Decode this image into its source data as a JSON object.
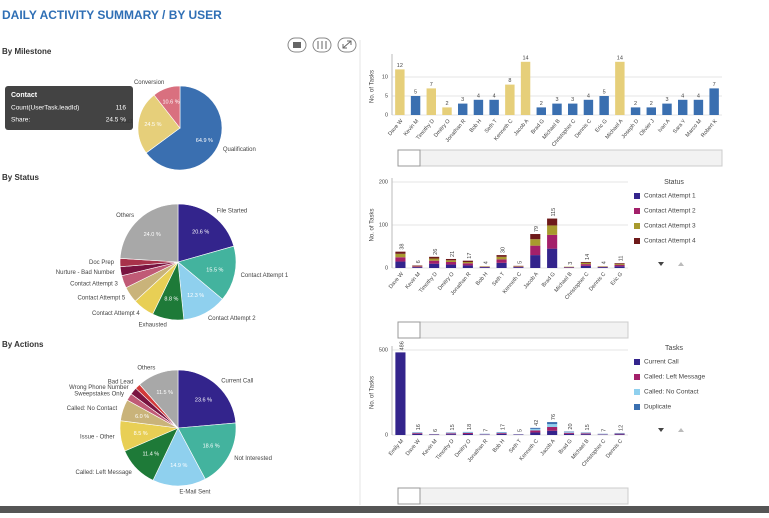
{
  "header": {
    "title": "DAILY ACTIVITY SUMMARY / BY USER"
  },
  "chart_data": [
    {
      "type": "pie",
      "title": "By Milestone",
      "categories": [
        "Qualification",
        "Contact",
        "Conversion"
      ],
      "values": [
        64.9,
        24.5,
        10.6
      ],
      "value_labels": [
        "64.9 %",
        "24.5 %",
        "10.6 %"
      ],
      "colors": [
        "#3a6fb0",
        "#e6cf7a",
        "#d9707f"
      ],
      "tooltip": {
        "title": "Contact",
        "rows": [
          [
            "Count(UserTask.leadId)",
            "116"
          ],
          [
            "Share:",
            "24.5 %"
          ]
        ]
      }
    },
    {
      "type": "pie",
      "title": "By Status",
      "categories": [
        "File Started",
        "Contact Attempt 1",
        "Contact Attempt 2",
        "Exhausted",
        "Contact Attempt 4",
        "Contact Attempt 5",
        "Contact Attempt 3",
        "Nurture - Bad Number",
        "Doc Prep",
        "Others"
      ],
      "values": [
        20.6,
        15.5,
        12.3,
        8.8,
        6,
        4.5,
        3.5,
        2.5,
        2.3,
        24
      ],
      "value_labels": [
        "20.6 %",
        "15.5 %",
        "12.3 %",
        "8.8 %",
        null,
        null,
        null,
        null,
        null,
        "24.0 %"
      ],
      "colors": [
        "#33248c",
        "#43b39e",
        "#8fd0ee",
        "#1e7a38",
        "#e8cf55",
        "#c9b37a",
        "#c05a76",
        "#7a1440",
        "#a8324a",
        "#a8a8a8"
      ]
    },
    {
      "type": "pie",
      "title": "By Actions",
      "categories": [
        "Current Call",
        "Not Interested",
        "E-Mail Sent",
        "Called: Left Message",
        "Issue - Other",
        "Called: No Contact",
        "Sweepstakes Only",
        "Wrong Phone Number",
        "Bad Lead",
        "Others"
      ],
      "values": [
        23.6,
        18.6,
        14.9,
        11.4,
        8.5,
        6,
        2,
        2,
        1.5,
        11.5
      ],
      "value_labels": [
        "23.6 %",
        "18.6 %",
        "14.9 %",
        "11.4 %",
        "8.5 %",
        "6.0 %",
        null,
        null,
        null,
        "11.5 %"
      ],
      "colors": [
        "#33248c",
        "#43b39e",
        "#8fd0ee",
        "#1e7a38",
        "#e8cf55",
        "#c9b37a",
        "#c05a76",
        "#7a1440",
        "#d23a3a",
        "#a8a8a8"
      ]
    },
    {
      "type": "bar",
      "ylabel": "No. of Tasks",
      "categories": [
        "Dave W",
        "Kevin M",
        "Timothy D",
        "Dmitry O",
        "Jonathan R",
        "Bob H",
        "Seth T",
        "Kenneth C",
        "Jacob A",
        "Brad G",
        "Michael B",
        "Christopher C",
        "Dennis C",
        "Eric G",
        "Michael A",
        "Joseph D",
        "Olivier J",
        "Ivan A",
        "Sara Y",
        "Marco M",
        "Robert K"
      ],
      "values": [
        12,
        5,
        7,
        2,
        3,
        4,
        4,
        8,
        14,
        2,
        3,
        3,
        4,
        5,
        14,
        2,
        2,
        3,
        4,
        4,
        7
      ],
      "colors": [
        "#e6cf7a",
        "#3a6fb0",
        "#e6cf7a",
        "#e6cf7a",
        "#3a6fb0",
        "#3a6fb0",
        "#3a6fb0",
        "#e6cf7a",
        "#e6cf7a",
        "#3a6fb0",
        "#3a6fb0",
        "#3a6fb0",
        "#3a6fb0",
        "#3a6fb0",
        "#e6cf7a",
        "#3a6fb0",
        "#3a6fb0",
        "#3a6fb0",
        "#3a6fb0",
        "#3a6fb0",
        "#3a6fb0"
      ],
      "ylim": [
        0,
        15
      ],
      "yticks": [
        0,
        5,
        10
      ]
    },
    {
      "type": "stacked-bar",
      "ylabel": "No. of Tasks",
      "legend_title": "Status",
      "categories": [
        "Dave W",
        "Kevin M",
        "Timothy D",
        "Dmitry O",
        "Jonathan R",
        "Bob H",
        "Seth T",
        "Kenneth C",
        "Jacob A",
        "Brad G",
        "Michael B",
        "Christopher C",
        "Dennis C",
        "Eric G"
      ],
      "series": [
        {
          "name": "Contact Attempt 1",
          "color": "#33248c",
          "values": [
            15,
            2,
            10,
            8,
            6,
            2,
            12,
            2,
            30,
            45,
            1,
            5,
            2,
            4
          ]
        },
        {
          "name": "Contact Attempt 2",
          "color": "#a3206a",
          "values": [
            10,
            2,
            7,
            6,
            5,
            1,
            8,
            1,
            22,
            32,
            1,
            4,
            1,
            3
          ]
        },
        {
          "name": "Contact Attempt 3",
          "color": "#a89a2e",
          "values": [
            8,
            1,
            5,
            4,
            3,
            1,
            6,
            1,
            15,
            22,
            1,
            3,
            1,
            2
          ]
        },
        {
          "name": "Contact Attempt 4",
          "color": "#6e1a1a",
          "values": [
            5,
            1,
            4,
            3,
            3,
            0,
            4,
            1,
            12,
            16,
            0,
            2,
            0,
            2
          ]
        }
      ],
      "totals": [
        38,
        6,
        26,
        21,
        17,
        4,
        30,
        5,
        79,
        115,
        3,
        14,
        4,
        11
      ],
      "ylim": [
        0,
        200
      ],
      "yticks": [
        0,
        100,
        200
      ]
    },
    {
      "type": "stacked-bar",
      "ylabel": "No. of Tasks",
      "legend_title": "Tasks",
      "categories": [
        "Emily M",
        "Dave W",
        "Kevin M",
        "Timothy D",
        "Dmitry O",
        "Jonathan R",
        "Bob H",
        "Seth T",
        "Kenneth C",
        "Jacob A",
        "Brad G",
        "Michael B",
        "Christopher C",
        "Dennis C"
      ],
      "series": [
        {
          "name": "Current Call",
          "color": "#33248c",
          "values": [
            486,
            6,
            2,
            5,
            6,
            2,
            6,
            2,
            15,
            25,
            7,
            5,
            2,
            4
          ]
        },
        {
          "name": "Called: Left Message",
          "color": "#a3206a",
          "values": [
            0,
            5,
            2,
            5,
            6,
            2,
            5,
            1,
            12,
            22,
            6,
            5,
            2,
            4
          ]
        },
        {
          "name": "Called: No Contact",
          "color": "#8fd0ee",
          "values": [
            0,
            3,
            1,
            3,
            4,
            2,
            4,
            1,
            9,
            17,
            4,
            3,
            2,
            2
          ]
        },
        {
          "name": "Duplicate",
          "color": "#3a6fb0",
          "values": [
            0,
            2,
            1,
            2,
            2,
            1,
            2,
            1,
            6,
            12,
            3,
            2,
            1,
            2
          ]
        }
      ],
      "totals": [
        486,
        16,
        6,
        15,
        18,
        7,
        17,
        5,
        42,
        76,
        20,
        15,
        7,
        12
      ],
      "ylim": [
        0,
        500
      ],
      "yticks": [
        0,
        500
      ]
    }
  ]
}
